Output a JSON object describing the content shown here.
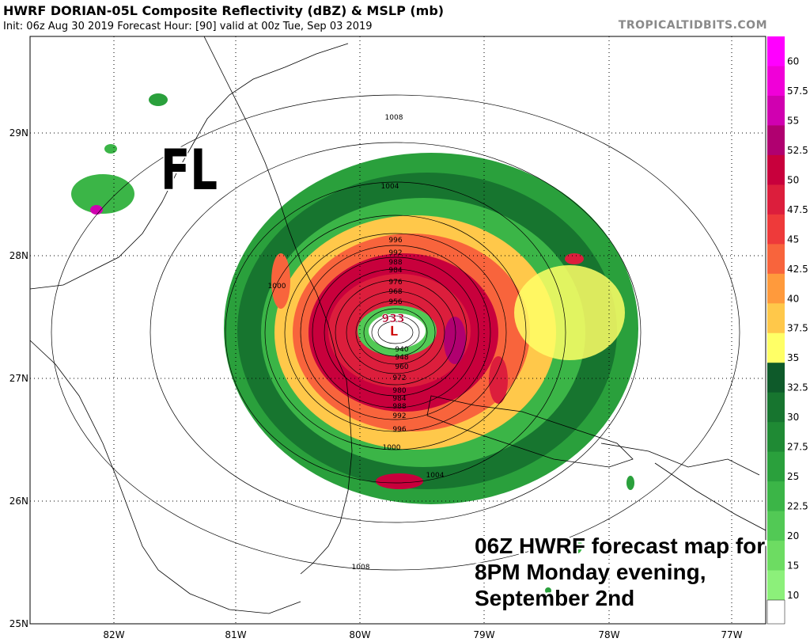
{
  "header": {
    "title": "HWRF DORIAN-05L Composite Reflectivity (dBZ) & MSLP (mb)",
    "subtitle": "Init: 06z Aug 30 2019   Forecast Hour: [90]   valid at 00z Tue, Sep 03 2019",
    "brand": "TROPICALTIDBITS.COM"
  },
  "map": {
    "longitude_labels": [
      "82W",
      "81W",
      "80W",
      "79W",
      "78W",
      "77W"
    ],
    "latitude_labels": [
      "29N",
      "28N",
      "27N",
      "26N",
      "25N"
    ],
    "state_label": "FL",
    "storm": {
      "center_pressure_label": "933",
      "low_symbol": "L",
      "isobar_labels": [
        "1008",
        "1004",
        "1000",
        "996",
        "992",
        "988",
        "984",
        "976",
        "968",
        "956",
        "940",
        "948",
        "960",
        "972",
        "980",
        "984",
        "988",
        "992",
        "996",
        "1000",
        "1004",
        "1008"
      ]
    }
  },
  "colorbar": {
    "labels": [
      "60",
      "57.5",
      "55",
      "52.5",
      "50",
      "47.5",
      "45",
      "42.5",
      "40",
      "37.5",
      "35",
      "32.5",
      "30",
      "27.5",
      "25",
      "22.5",
      "20",
      "15",
      "10"
    ],
    "colors": [
      "#ff00ff",
      "#f000d8",
      "#d000b0",
      "#b00070",
      "#c8003c",
      "#dc1e3c",
      "#ee3a3a",
      "#f8643c",
      "#ff9a3c",
      "#ffc84a",
      "#ffff66",
      "#0e5a2a",
      "#17752f",
      "#1f8a34",
      "#2aa03c",
      "#3bb547",
      "#52c955",
      "#6ddc62",
      "#8cf07a"
    ],
    "bottom_color": "#ffffff"
  },
  "annotation": {
    "lines": [
      "06Z HWRF forecast map for",
      "8PM Monday evening,",
      "September 2nd"
    ]
  }
}
